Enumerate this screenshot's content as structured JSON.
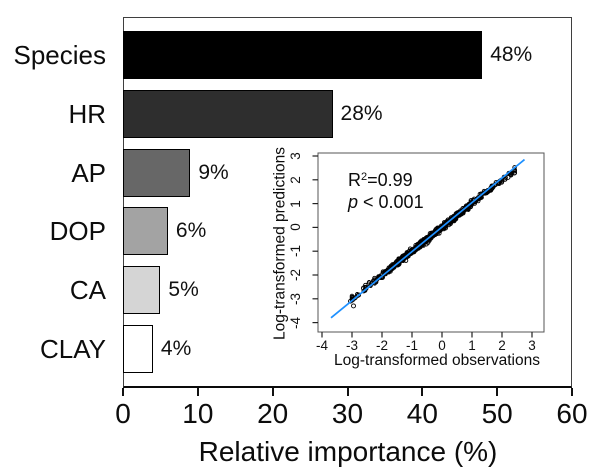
{
  "chart_data": [
    {
      "type": "bar",
      "orientation": "horizontal",
      "title": "",
      "categories": [
        "Species",
        "HR",
        "AP",
        "DOP",
        "CA",
        "CLAY"
      ],
      "values": [
        48,
        28,
        9,
        6,
        5,
        4
      ],
      "value_labels": [
        "48%",
        "28%",
        "9%",
        "6%",
        "5%",
        "4%"
      ],
      "bar_colors": [
        "#000000",
        "#2e2e2e",
        "#676767",
        "#a3a3a3",
        "#d5d5d5",
        "#ffffff"
      ],
      "bar_border_color": "#000000",
      "xlabel": "Relative importance (%)",
      "xlim": [
        0,
        60
      ],
      "x_ticks": [
        0,
        10,
        20,
        30,
        40,
        50,
        60
      ],
      "grid": false,
      "legend": "none"
    },
    {
      "type": "scatter",
      "title": "",
      "xlabel": "Log-transformed observations",
      "ylabel": "Log-transformed predictions",
      "xlim": [
        -4.1,
        3.3
      ],
      "ylim": [
        -4.65,
        3.15
      ],
      "x_ticks": [
        -4,
        -3,
        -2,
        -1,
        0,
        1,
        2,
        3
      ],
      "y_ticks": [
        -4,
        -3,
        -2,
        -1,
        0,
        1,
        2,
        3
      ],
      "grid": false,
      "annotation": {
        "r2_base": "R",
        "r2_sup": "2",
        "r2_rest": "=0.99",
        "p_italic": "p",
        "p_rest": " < 0.001"
      },
      "fit_line": {
        "color": "#1e90ff",
        "x1": -3.7,
        "y1": -3.8,
        "x2": 2.75,
        "y2": 2.85,
        "meaning": "1:1 regression line"
      },
      "points": {
        "marker": "open-circle",
        "color": "#000000",
        "relationship": "y ~ x (predictions match observations)",
        "n": 680,
        "x_mean": -0.4,
        "x_sd": 1.2,
        "x_min": -3.0,
        "x_max": 2.42,
        "noise_sd": 0.06,
        "seed": 42,
        "edge_points": [
          [
            -3.05,
            -3.1
          ],
          [
            -2.95,
            -3.3
          ],
          [
            -2.9,
            -2.96
          ],
          [
            -2.78,
            -2.84
          ],
          [
            -2.62,
            -2.55
          ],
          [
            1.9,
            1.84
          ],
          [
            2.0,
            1.95
          ],
          [
            2.1,
            2.02
          ],
          [
            2.2,
            2.1
          ],
          [
            2.3,
            2.2
          ],
          [
            2.42,
            2.3
          ]
        ]
      }
    }
  ]
}
